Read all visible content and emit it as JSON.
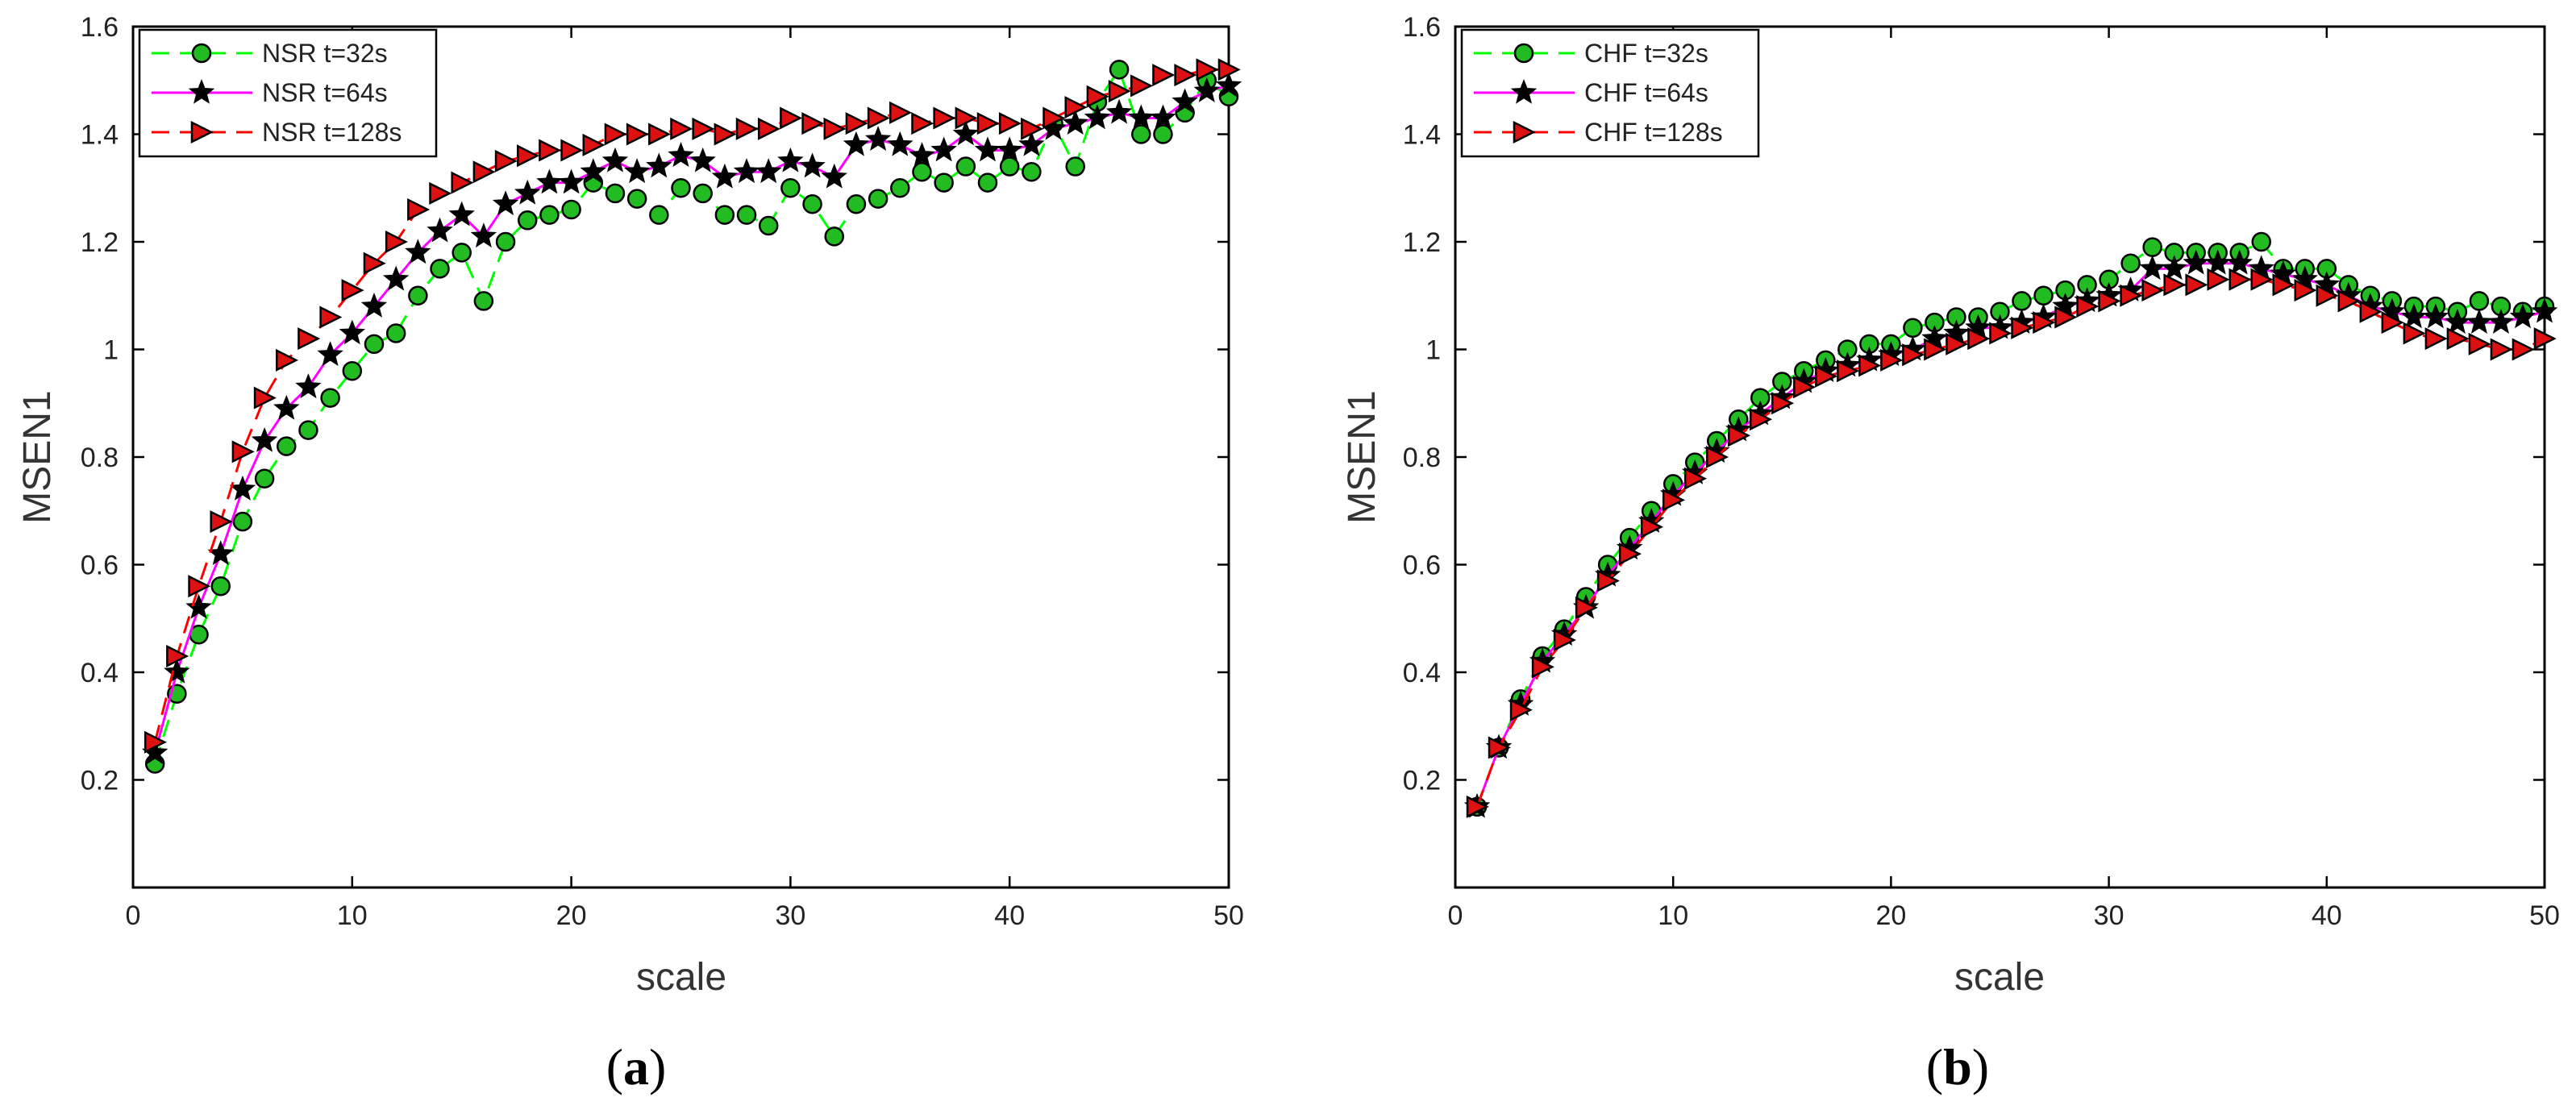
{
  "chart_data": [
    {
      "type": "line",
      "panel_label": "a",
      "xlabel": "scale",
      "ylabel": "MSEN1",
      "xlim": [
        0,
        50
      ],
      "ylim": [
        0,
        1.6
      ],
      "xticks": [
        0,
        10,
        20,
        30,
        40,
        50
      ],
      "xtick_labels": [
        "0",
        "10",
        "20",
        "30",
        "40",
        "50"
      ],
      "yticks": [
        0.2,
        0.4,
        0.6,
        0.8,
        1.0,
        1.2,
        1.4,
        1.6
      ],
      "ytick_labels": [
        "0.2",
        "0.4",
        "0.6",
        "0.8",
        "1",
        "1.2",
        "1.4",
        "1.6"
      ],
      "legend_position": "top-left",
      "x": [
        1,
        2,
        3,
        4,
        5,
        6,
        7,
        8,
        9,
        10,
        11,
        12,
        13,
        14,
        15,
        16,
        17,
        18,
        19,
        20,
        21,
        22,
        23,
        24,
        25,
        26,
        27,
        28,
        29,
        30,
        31,
        32,
        33,
        34,
        35,
        36,
        37,
        38,
        39,
        40,
        41,
        42,
        43,
        44,
        45,
        46,
        47,
        48,
        49,
        50
      ],
      "series": [
        {
          "name": "NSR t=32s",
          "color": "#00ff00",
          "marker": "circle",
          "marker_fill": "#22bb22",
          "line_style": "dashed",
          "values": [
            0.23,
            0.36,
            0.47,
            0.56,
            0.68,
            0.76,
            0.82,
            0.85,
            0.91,
            0.96,
            1.01,
            1.03,
            1.1,
            1.15,
            1.18,
            1.09,
            1.2,
            1.24,
            1.25,
            1.26,
            1.31,
            1.29,
            1.28,
            1.25,
            1.3,
            1.29,
            1.25,
            1.25,
            1.23,
            1.3,
            1.27,
            1.21,
            1.27,
            1.28,
            1.3,
            1.33,
            1.31,
            1.34,
            1.31,
            1.34,
            1.33,
            1.42,
            1.34,
            1.46,
            1.52,
            1.4,
            1.4,
            1.44,
            1.5,
            1.47
          ]
        },
        {
          "name": "NSR t=64s",
          "color": "#ff00ff",
          "marker": "star",
          "marker_fill": "#000000",
          "line_style": "solid",
          "values": [
            0.25,
            0.4,
            0.52,
            0.62,
            0.74,
            0.83,
            0.89,
            0.93,
            0.99,
            1.03,
            1.08,
            1.13,
            1.18,
            1.22,
            1.25,
            1.21,
            1.27,
            1.29,
            1.31,
            1.31,
            1.33,
            1.35,
            1.33,
            1.34,
            1.36,
            1.35,
            1.32,
            1.33,
            1.33,
            1.35,
            1.34,
            1.32,
            1.38,
            1.39,
            1.38,
            1.36,
            1.37,
            1.4,
            1.37,
            1.37,
            1.38,
            1.41,
            1.42,
            1.43,
            1.44,
            1.43,
            1.43,
            1.46,
            1.48,
            1.49
          ]
        },
        {
          "name": "NSR t=128s",
          "color": "#ff0000",
          "marker": "triangle-right",
          "marker_fill": "#dd1111",
          "line_style": "dashed",
          "values": [
            0.27,
            0.43,
            0.56,
            0.68,
            0.81,
            0.91,
            0.98,
            1.02,
            1.06,
            1.11,
            1.16,
            1.2,
            1.26,
            1.29,
            1.31,
            1.33,
            1.35,
            1.36,
            1.37,
            1.37,
            1.38,
            1.4,
            1.4,
            1.4,
            1.41,
            1.41,
            1.4,
            1.41,
            1.41,
            1.43,
            1.42,
            1.41,
            1.42,
            1.43,
            1.44,
            1.42,
            1.43,
            1.43,
            1.42,
            1.42,
            1.41,
            1.43,
            1.45,
            1.47,
            1.48,
            1.49,
            1.51,
            1.51,
            1.52,
            1.52
          ]
        }
      ]
    },
    {
      "type": "line",
      "panel_label": "b",
      "xlabel": "scale",
      "ylabel": "MSEN1",
      "xlim": [
        0,
        50
      ],
      "ylim": [
        0,
        1.6
      ],
      "xticks": [
        0,
        10,
        20,
        30,
        40,
        50
      ],
      "xtick_labels": [
        "0",
        "10",
        "20",
        "30",
        "40",
        "50"
      ],
      "yticks": [
        0.2,
        0.4,
        0.6,
        0.8,
        1.0,
        1.2,
        1.4,
        1.6
      ],
      "ytick_labels": [
        "0.2",
        "0.4",
        "0.6",
        "0.8",
        "1",
        "1.2",
        "1.4",
        "1.6"
      ],
      "legend_position": "top-left",
      "x": [
        1,
        2,
        3,
        4,
        5,
        6,
        7,
        8,
        9,
        10,
        11,
        12,
        13,
        14,
        15,
        16,
        17,
        18,
        19,
        20,
        21,
        22,
        23,
        24,
        25,
        26,
        27,
        28,
        29,
        30,
        31,
        32,
        33,
        34,
        35,
        36,
        37,
        38,
        39,
        40,
        41,
        42,
        43,
        44,
        45,
        46,
        47,
        48,
        49,
        50
      ],
      "series": [
        {
          "name": "CHF t=32s",
          "color": "#00ff00",
          "marker": "circle",
          "marker_fill": "#22bb22",
          "line_style": "dashed",
          "values": [
            0.15,
            0.26,
            0.35,
            0.43,
            0.48,
            0.54,
            0.6,
            0.65,
            0.7,
            0.75,
            0.79,
            0.83,
            0.87,
            0.91,
            0.94,
            0.96,
            0.98,
            1.0,
            1.01,
            1.01,
            1.04,
            1.05,
            1.06,
            1.06,
            1.07,
            1.09,
            1.1,
            1.11,
            1.12,
            1.13,
            1.16,
            1.19,
            1.18,
            1.18,
            1.18,
            1.18,
            1.2,
            1.15,
            1.15,
            1.15,
            1.12,
            1.1,
            1.09,
            1.08,
            1.08,
            1.07,
            1.09,
            1.08,
            1.07,
            1.08
          ]
        },
        {
          "name": "CHF t=64s",
          "color": "#ff00ff",
          "marker": "star",
          "marker_fill": "#000000",
          "line_style": "solid",
          "values": [
            0.15,
            0.26,
            0.34,
            0.42,
            0.47,
            0.52,
            0.58,
            0.63,
            0.68,
            0.73,
            0.77,
            0.81,
            0.85,
            0.88,
            0.91,
            0.94,
            0.96,
            0.97,
            0.98,
            0.99,
            1.0,
            1.02,
            1.03,
            1.04,
            1.04,
            1.05,
            1.06,
            1.08,
            1.09,
            1.1,
            1.11,
            1.15,
            1.15,
            1.16,
            1.16,
            1.16,
            1.15,
            1.14,
            1.13,
            1.12,
            1.1,
            1.08,
            1.07,
            1.06,
            1.06,
            1.05,
            1.05,
            1.05,
            1.06,
            1.07
          ]
        },
        {
          "name": "CHF t=128s",
          "color": "#ff0000",
          "marker": "triangle-right",
          "marker_fill": "#dd1111",
          "line_style": "dashed",
          "values": [
            0.15,
            0.26,
            0.33,
            0.41,
            0.46,
            0.52,
            0.57,
            0.62,
            0.67,
            0.72,
            0.76,
            0.8,
            0.84,
            0.87,
            0.9,
            0.93,
            0.95,
            0.96,
            0.97,
            0.98,
            0.99,
            1.0,
            1.01,
            1.02,
            1.03,
            1.04,
            1.05,
            1.06,
            1.08,
            1.09,
            1.1,
            1.11,
            1.12,
            1.12,
            1.13,
            1.13,
            1.13,
            1.12,
            1.11,
            1.1,
            1.09,
            1.07,
            1.05,
            1.03,
            1.02,
            1.02,
            1.01,
            1.0,
            1.0,
            1.02
          ]
        }
      ]
    }
  ]
}
